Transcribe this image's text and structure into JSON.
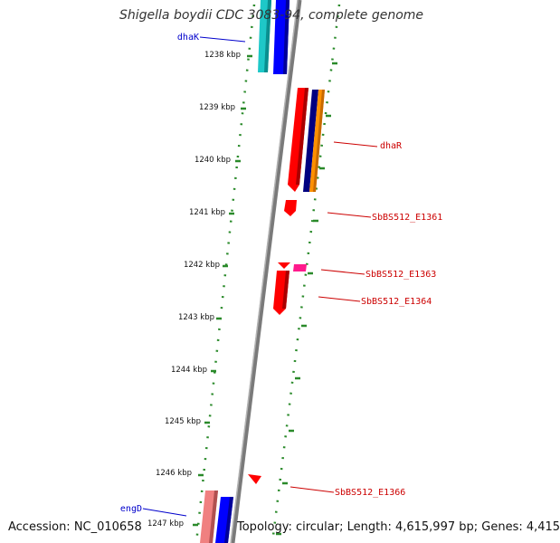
{
  "title": "Shigella boydii CDC 3083-94, complete genome",
  "accession": "Accession: NC_010658",
  "topology": "Topology: circular; Length: 4,615,997 bp; Genes: 4,415",
  "scale_labels": [
    "1238 kbp",
    "1239 kbp",
    "1240 kbp",
    "1241 kbp",
    "1242 kbp",
    "1243 kbp",
    "1244 kbp",
    "1245 kbp",
    "1246 kbp",
    "1247 kbp"
  ],
  "genes": [
    {
      "name": "dhaK",
      "strand": "minus",
      "color": "#0000cc"
    },
    {
      "name": "dhaR",
      "strand": "plus",
      "color": "#cc0000"
    },
    {
      "name": "SbBS512_E1361",
      "strand": "plus",
      "color": "#cc0000"
    },
    {
      "name": "SbBS512_E1363",
      "strand": "plus",
      "color": "#cc0000"
    },
    {
      "name": "SbBS512_E1364",
      "strand": "plus",
      "color": "#cc0000"
    },
    {
      "name": "SbBS512_E1366",
      "strand": "plus",
      "color": "#cc0000"
    },
    {
      "name": "engD",
      "strand": "minus",
      "color": "#0000cc"
    }
  ],
  "colors": {
    "backbone": "#7a7a7a",
    "scale_dots": "#2a8a2a",
    "red": "#ff0000",
    "cyan": "#1ec8c8",
    "blue": "#0000ff",
    "navy": "#000080",
    "orange": "#ff9000",
    "magenta": "#ff1a8c",
    "pink": "#f08080"
  }
}
